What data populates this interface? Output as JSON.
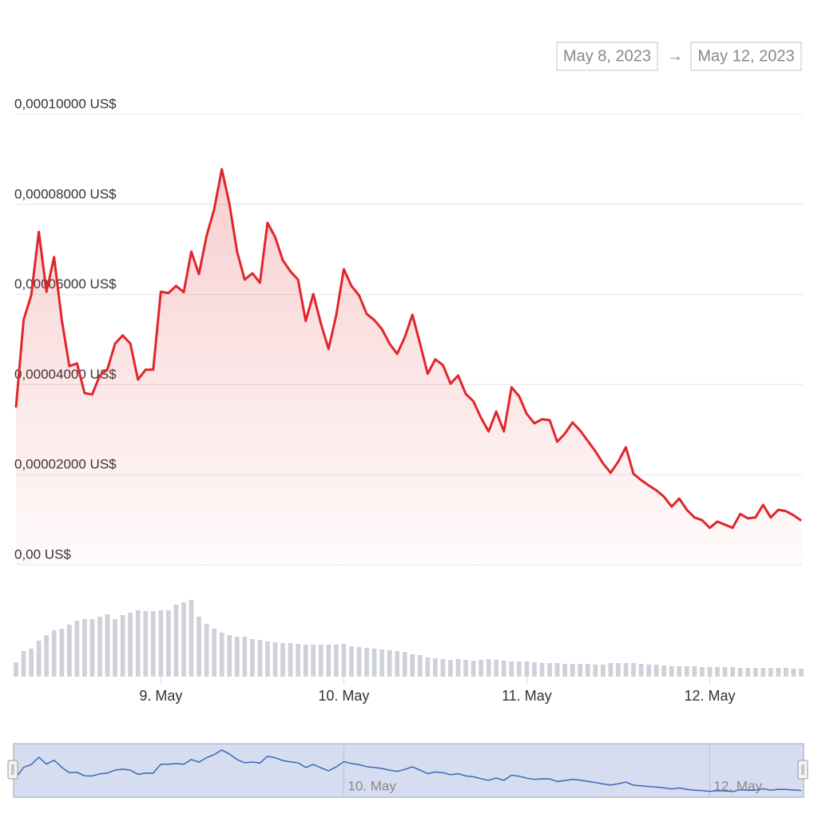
{
  "range": {
    "from": "May 8, 2023",
    "sep": "→",
    "to": "May 12, 2023"
  },
  "chart_data": {
    "type": "line",
    "x": [
      8.2083,
      8.25,
      8.2917,
      8.3333,
      8.375,
      8.4167,
      8.4583,
      8.5,
      8.5417,
      8.5833,
      8.625,
      8.6667,
      8.7083,
      8.75,
      8.7917,
      8.8333,
      8.875,
      8.9167,
      8.9583,
      9,
      9.0417,
      9.0833,
      9.125,
      9.1667,
      9.2083,
      9.25,
      9.2917,
      9.3333,
      9.375,
      9.4167,
      9.4583,
      9.5,
      9.5417,
      9.5833,
      9.625,
      9.6667,
      9.7083,
      9.75,
      9.7917,
      9.8333,
      9.875,
      9.9167,
      9.9583,
      10,
      10.0417,
      10.0833,
      10.125,
      10.1667,
      10.2083,
      10.25,
      10.2917,
      10.3333,
      10.375,
      10.4167,
      10.4583,
      10.5,
      10.5417,
      10.5833,
      10.625,
      10.6667,
      10.7083,
      10.75,
      10.7917,
      10.8333,
      10.875,
      10.9167,
      10.9583,
      11,
      11.0417,
      11.0833,
      11.125,
      11.1667,
      11.2083,
      11.25,
      11.2917,
      11.3333,
      11.375,
      11.4167,
      11.4583,
      11.5,
      11.5417,
      11.5833,
      11.625,
      11.6667,
      11.7083,
      11.75,
      11.7917,
      11.8333,
      11.875,
      11.9167,
      11.9583,
      12,
      12.0417,
      12.0833,
      12.125,
      12.1667,
      12.2083,
      12.25,
      12.2917,
      12.3333,
      12.375,
      12.4167,
      12.4583,
      12.5
    ],
    "values": [
      3.49e-05,
      5.44e-05,
      5.98e-05,
      7.39e-05,
      6.06e-05,
      6.83e-05,
      5.44e-05,
      4.41e-05,
      4.47e-05,
      3.81e-05,
      3.78e-05,
      4.2e-05,
      4.34e-05,
      4.91e-05,
      5.09e-05,
      4.91e-05,
      4.11e-05,
      4.33e-05,
      4.33e-05,
      6.06e-05,
      6.03e-05,
      6.19e-05,
      6.05e-05,
      6.95e-05,
      6.45e-05,
      7.3e-05,
      7.89e-05,
      8.78e-05,
      8.01e-05,
      6.95e-05,
      6.33e-05,
      6.47e-05,
      6.26e-05,
      7.59e-05,
      7.27e-05,
      6.76e-05,
      6.51e-05,
      6.33e-05,
      5.41e-05,
      6.01e-05,
      5.35e-05,
      4.79e-05,
      5.53e-05,
      6.56e-05,
      6.19e-05,
      5.98e-05,
      5.57e-05,
      5.43e-05,
      5.23e-05,
      4.91e-05,
      4.68e-05,
      5.05e-05,
      5.55e-05,
      4.91e-05,
      4.24e-05,
      4.56e-05,
      4.43e-05,
      4.02e-05,
      4.2e-05,
      3.79e-05,
      3.63e-05,
      3.26e-05,
      2.96e-05,
      3.4e-05,
      2.96e-05,
      3.94e-05,
      3.74e-05,
      3.35e-05,
      3.14e-05,
      3.23e-05,
      3.21e-05,
      2.73e-05,
      2.91e-05,
      3.16e-05,
      2.98e-05,
      2.75e-05,
      2.52e-05,
      2.25e-05,
      2.04e-05,
      2.29e-05,
      2.61e-05,
      2.02e-05,
      1.88e-05,
      1.76e-05,
      1.65e-05,
      1.51e-05,
      1.29e-05,
      1.47e-05,
      1.22e-05,
      1.05e-05,
      9.9e-06,
      8.2e-06,
      9.6e-06,
      8.9e-06,
      8.2e-06,
      1.13e-05,
      1.03e-05,
      1.05e-05,
      1.33e-05,
      1.05e-05,
      1.22e-05,
      1.19e-05,
      1.1e-05,
      9.8e-06
    ],
    "color": "#e0262b",
    "xlim": [
      8.2083,
      12.5
    ],
    "xticks": [
      {
        "value": 9,
        "label": "9. May"
      },
      {
        "value": 10,
        "label": "10. May"
      },
      {
        "value": 11,
        "label": "11. May"
      },
      {
        "value": 12,
        "label": "12. May"
      }
    ],
    "ylim": [
      0,
      0.0001
    ],
    "yticks": [
      {
        "value": 0,
        "label": "0,00 US$"
      },
      {
        "value": 2e-05,
        "label": "0,00002000 US$"
      },
      {
        "value": 4e-05,
        "label": "0,00004000 US$"
      },
      {
        "value": 6e-05,
        "label": "0,00006000 US$"
      },
      {
        "value": 8e-05,
        "label": "0,00008000 US$"
      },
      {
        "value": 0.0001,
        "label": "0,00010000 US$"
      }
    ],
    "grid": true,
    "volume": {
      "color": "#cfd1da",
      "ylim": [
        0,
        100
      ],
      "values": [
        18,
        32,
        35,
        45,
        52,
        58,
        60,
        65,
        70,
        72,
        72,
        75,
        78,
        72,
        77,
        80,
        83,
        82,
        82,
        83,
        83,
        90,
        93,
        96,
        75,
        66,
        60,
        55,
        52,
        50,
        50,
        47,
        46,
        44,
        43,
        42,
        42,
        41,
        40,
        40,
        40,
        40,
        40,
        41,
        38,
        37,
        36,
        35,
        34,
        33,
        32,
        31,
        28,
        27,
        24,
        23,
        22,
        21,
        22,
        21,
        20,
        21,
        22,
        21,
        20,
        19,
        19,
        19,
        18,
        17,
        17,
        17,
        16,
        16,
        16,
        16,
        15,
        15,
        17,
        17,
        17,
        17,
        16,
        15,
        15,
        14,
        13,
        13,
        13,
        13,
        12,
        12,
        12,
        12,
        12,
        11,
        11,
        11,
        11,
        11,
        11,
        11,
        10,
        10
      ]
    },
    "navigator": {
      "color": "#3d67b8",
      "fill": "#d6ddf0"
    }
  }
}
